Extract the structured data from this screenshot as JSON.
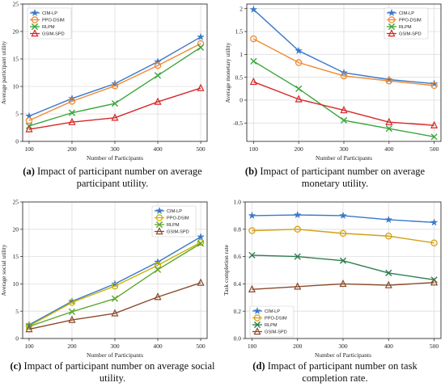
{
  "chart_data": [
    {
      "type": "line",
      "panel_label": "(a)",
      "caption": "Impact of participant number on average participant utility.",
      "title": "",
      "xlabel": "Number of Participants",
      "ylabel": "Average participant utility",
      "x": [
        100,
        200,
        300,
        400,
        500
      ],
      "xlim": [
        85,
        515
      ],
      "ylim": [
        0,
        25
      ],
      "yticks": [
        0,
        5,
        10,
        15,
        20,
        25
      ],
      "grid": true,
      "legend": "top-left",
      "series": [
        {
          "name": "CIM-LP",
          "values": [
            4.6,
            7.8,
            10.5,
            14.5,
            19.0
          ],
          "color": "#3a78c9",
          "marker": "star"
        },
        {
          "name": "PPO-DSIM",
          "values": [
            3.8,
            7.3,
            10.1,
            13.8,
            17.8
          ],
          "color": "#f08a32",
          "marker": "circle"
        },
        {
          "name": "RLPM",
          "values": [
            2.8,
            5.2,
            6.9,
            12.0,
            17.1
          ],
          "color": "#3aa53a",
          "marker": "x"
        },
        {
          "name": "GSIM-SPD",
          "values": [
            2.2,
            3.5,
            4.3,
            7.2,
            9.7
          ],
          "color": "#d62728",
          "marker": "triangle"
        }
      ]
    },
    {
      "type": "line",
      "panel_label": "(b)",
      "caption": "Impact of participant number on average monetary utility.",
      "title": "",
      "xlabel": "Number of Participants",
      "ylabel": "Average monetary utility",
      "x": [
        100,
        200,
        300,
        400,
        500
      ],
      "xlim": [
        85,
        515
      ],
      "ylim": [
        -0.9,
        2.1
      ],
      "yticks": [
        -0.5,
        0,
        0.5,
        1,
        1.5,
        2
      ],
      "ytick_labels": [
        "-0.5",
        "0",
        "0.5",
        "1",
        "1.5",
        "2"
      ],
      "grid": true,
      "legend": "top-right",
      "series": [
        {
          "name": "CIM-LP",
          "values": [
            1.98,
            1.08,
            0.6,
            0.45,
            0.36
          ],
          "color": "#3a78c9",
          "marker": "star"
        },
        {
          "name": "PPO-DSIM",
          "values": [
            1.34,
            0.82,
            0.53,
            0.42,
            0.32
          ],
          "color": "#f08a32",
          "marker": "circle"
        },
        {
          "name": "RLPM",
          "values": [
            0.85,
            0.25,
            -0.44,
            -0.62,
            -0.8
          ],
          "color": "#3aa53a",
          "marker": "x"
        },
        {
          "name": "GSIM-SPD",
          "values": [
            0.4,
            0.02,
            -0.22,
            -0.48,
            -0.55
          ],
          "color": "#d62728",
          "marker": "triangle"
        }
      ]
    },
    {
      "type": "line",
      "panel_label": "(c)",
      "caption": "Impact of participant number on average social utility.",
      "title": "",
      "xlabel": "Number of Participants",
      "ylabel": "Average social utility",
      "x": [
        100,
        200,
        300,
        400,
        500
      ],
      "xlim": [
        85,
        515
      ],
      "ylim": [
        0,
        25
      ],
      "yticks": [
        0,
        5,
        10,
        15,
        20,
        25
      ],
      "grid": true,
      "legend": "top-right",
      "series": [
        {
          "name": "CIM-LP",
          "values": [
            2.5,
            6.8,
            10.0,
            14.0,
            18.6
          ],
          "color": "#3a78c9",
          "marker": "star"
        },
        {
          "name": "PPO-DSIM",
          "values": [
            2.3,
            6.6,
            9.6,
            13.4,
            17.6
          ],
          "color": "#c8b400",
          "marker": "circle"
        },
        {
          "name": "RLPM",
          "values": [
            2.2,
            4.9,
            7.3,
            12.6,
            17.4
          ],
          "color": "#5aa62a",
          "marker": "x"
        },
        {
          "name": "GSIM-SPD",
          "values": [
            1.7,
            3.4,
            4.6,
            7.6,
            10.2
          ],
          "color": "#8b4a2b",
          "marker": "triangle"
        }
      ]
    },
    {
      "type": "line",
      "panel_label": "(d)",
      "caption": "Impact of participant number on task completion rate.",
      "title": "",
      "xlabel": "Number of Participants",
      "ylabel": "Task completion rate",
      "x": [
        100,
        200,
        300,
        400,
        500
      ],
      "xlim": [
        85,
        515
      ],
      "ylim": [
        0,
        1.0
      ],
      "yticks": [
        0,
        0.2,
        0.4,
        0.6,
        0.8,
        1.0
      ],
      "ytick_labels": [
        "0.0",
        "0.2",
        "0.4",
        "0.6",
        "0.8",
        "1.0"
      ],
      "grid": true,
      "legend": "bottom-left",
      "series": [
        {
          "name": "CIM-LP",
          "values": [
            0.9,
            0.905,
            0.9,
            0.87,
            0.85
          ],
          "color": "#3a78c9",
          "marker": "star"
        },
        {
          "name": "PPO-DSIM",
          "values": [
            0.79,
            0.8,
            0.77,
            0.75,
            0.7
          ],
          "color": "#d4a017",
          "marker": "circle"
        },
        {
          "name": "RLPM",
          "values": [
            0.61,
            0.6,
            0.57,
            0.48,
            0.43
          ],
          "color": "#2e7d4f",
          "marker": "x"
        },
        {
          "name": "GSIM-SPD",
          "values": [
            0.36,
            0.38,
            0.4,
            0.39,
            0.41
          ],
          "color": "#8b4a2b",
          "marker": "triangle"
        }
      ]
    }
  ]
}
